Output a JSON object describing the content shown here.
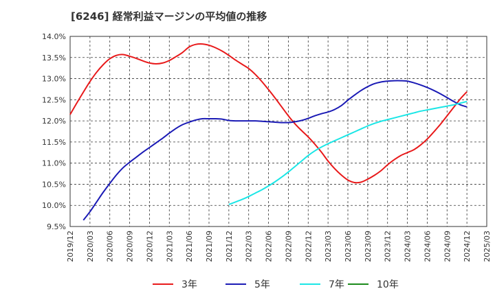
{
  "title": "[6246]  経常利益マージンの平均値の推移",
  "chart_data": {
    "type": "line",
    "title": "[6246]  経常利益マージンの平均値の推移",
    "xlabel": "",
    "ylabel": "",
    "ylim": [
      9.5,
      14.0
    ],
    "y_ticks": [
      "14.0%",
      "13.5%",
      "13.0%",
      "12.5%",
      "12.0%",
      "11.5%",
      "11.0%",
      "10.5%",
      "10.0%",
      "9.5%"
    ],
    "y_tick_values": [
      14.0,
      13.5,
      13.0,
      12.5,
      12.0,
      11.5,
      11.0,
      10.5,
      10.0,
      9.5
    ],
    "x_ticks": [
      "2019/12",
      "2020/03",
      "2020/06",
      "2020/09",
      "2020/12",
      "2021/03",
      "2021/06",
      "2021/09",
      "2021/12",
      "2022/03",
      "2022/06",
      "2022/09",
      "2022/12",
      "2023/03",
      "2023/06",
      "2023/09",
      "2023/12",
      "2024/03",
      "2024/06",
      "2024/09",
      "2024/12",
      "2025/03"
    ],
    "grid": true,
    "legend_position": "bottom",
    "series": [
      {
        "name": "3年",
        "color": "#e8191a",
        "points": [
          [
            "2019/12",
            12.15
          ],
          [
            "2020/01",
            12.42
          ],
          [
            "2020/02",
            12.68
          ],
          [
            "2020/03",
            12.93
          ],
          [
            "2020/04",
            13.15
          ],
          [
            "2020/05",
            13.33
          ],
          [
            "2020/06",
            13.47
          ],
          [
            "2020/07",
            13.55
          ],
          [
            "2020/08",
            13.57
          ],
          [
            "2020/09",
            13.53
          ],
          [
            "2020/10",
            13.48
          ],
          [
            "2020/11",
            13.42
          ],
          [
            "2020/12",
            13.37
          ],
          [
            "2021/01",
            13.35
          ],
          [
            "2021/02",
            13.37
          ],
          [
            "2021/03",
            13.43
          ],
          [
            "2021/04",
            13.52
          ],
          [
            "2021/05",
            13.62
          ],
          [
            "2021/06",
            13.75
          ],
          [
            "2021/07",
            13.81
          ],
          [
            "2021/08",
            13.82
          ],
          [
            "2021/09",
            13.79
          ],
          [
            "2021/10",
            13.73
          ],
          [
            "2021/11",
            13.65
          ],
          [
            "2021/12",
            13.55
          ],
          [
            "2022/01",
            13.44
          ],
          [
            "2022/02",
            13.34
          ],
          [
            "2022/03",
            13.24
          ],
          [
            "2022/04",
            13.1
          ],
          [
            "2022/05",
            12.93
          ],
          [
            "2022/06",
            12.74
          ],
          [
            "2022/07",
            12.54
          ],
          [
            "2022/08",
            12.33
          ],
          [
            "2022/09",
            12.12
          ],
          [
            "2022/10",
            11.93
          ],
          [
            "2022/11",
            11.77
          ],
          [
            "2022/12",
            11.62
          ],
          [
            "2023/01",
            11.45
          ],
          [
            "2023/02",
            11.26
          ],
          [
            "2023/03",
            11.05
          ],
          [
            "2023/04",
            10.87
          ],
          [
            "2023/05",
            10.72
          ],
          [
            "2023/06",
            10.6
          ],
          [
            "2023/07",
            10.54
          ],
          [
            "2023/08",
            10.55
          ],
          [
            "2023/09",
            10.62
          ],
          [
            "2023/10",
            10.71
          ],
          [
            "2023/11",
            10.82
          ],
          [
            "2023/12",
            10.96
          ],
          [
            "2024/01",
            11.08
          ],
          [
            "2024/02",
            11.18
          ],
          [
            "2024/03",
            11.25
          ],
          [
            "2024/04",
            11.32
          ],
          [
            "2024/05",
            11.43
          ],
          [
            "2024/06",
            11.57
          ],
          [
            "2024/07",
            11.74
          ],
          [
            "2024/08",
            11.92
          ],
          [
            "2024/09",
            12.12
          ],
          [
            "2024/10",
            12.32
          ],
          [
            "2024/11",
            12.52
          ],
          [
            "2024/12",
            12.69
          ]
        ]
      },
      {
        "name": "5年",
        "color": "#1a1ab5",
        "points": [
          [
            "2020/02",
            9.65
          ],
          [
            "2020/03",
            9.85
          ],
          [
            "2020/04",
            10.08
          ],
          [
            "2020/05",
            10.31
          ],
          [
            "2020/06",
            10.52
          ],
          [
            "2020/07",
            10.72
          ],
          [
            "2020/08",
            10.89
          ],
          [
            "2020/09",
            11.02
          ],
          [
            "2020/10",
            11.14
          ],
          [
            "2020/11",
            11.26
          ],
          [
            "2020/12",
            11.37
          ],
          [
            "2021/01",
            11.48
          ],
          [
            "2021/02",
            11.59
          ],
          [
            "2021/03",
            11.71
          ],
          [
            "2021/04",
            11.82
          ],
          [
            "2021/05",
            11.91
          ],
          [
            "2021/06",
            11.97
          ],
          [
            "2021/07",
            12.02
          ],
          [
            "2021/08",
            12.05
          ],
          [
            "2021/09",
            12.05
          ],
          [
            "2021/10",
            12.05
          ],
          [
            "2021/11",
            12.04
          ],
          [
            "2021/12",
            12.01
          ],
          [
            "2022/01",
            12.0
          ],
          [
            "2022/02",
            12.0
          ],
          [
            "2022/03",
            12.0
          ],
          [
            "2022/04",
            12.0
          ],
          [
            "2022/05",
            11.99
          ],
          [
            "2022/06",
            11.98
          ],
          [
            "2022/07",
            11.97
          ],
          [
            "2022/08",
            11.96
          ],
          [
            "2022/09",
            11.96
          ],
          [
            "2022/10",
            11.98
          ],
          [
            "2022/11",
            12.01
          ],
          [
            "2022/12",
            12.06
          ],
          [
            "2023/01",
            12.12
          ],
          [
            "2023/02",
            12.17
          ],
          [
            "2023/03",
            12.21
          ],
          [
            "2023/04",
            12.27
          ],
          [
            "2023/05",
            12.36
          ],
          [
            "2023/06",
            12.49
          ],
          [
            "2023/07",
            12.61
          ],
          [
            "2023/08",
            12.72
          ],
          [
            "2023/09",
            12.81
          ],
          [
            "2023/10",
            12.88
          ],
          [
            "2023/11",
            12.92
          ],
          [
            "2023/12",
            12.94
          ],
          [
            "2024/01",
            12.95
          ],
          [
            "2024/02",
            12.95
          ],
          [
            "2024/03",
            12.94
          ],
          [
            "2024/04",
            12.9
          ],
          [
            "2024/05",
            12.85
          ],
          [
            "2024/06",
            12.79
          ],
          [
            "2024/07",
            12.72
          ],
          [
            "2024/08",
            12.64
          ],
          [
            "2024/09",
            12.55
          ],
          [
            "2024/10",
            12.46
          ],
          [
            "2024/11",
            12.38
          ],
          [
            "2024/12",
            12.33
          ]
        ]
      },
      {
        "name": "7年",
        "color": "#1ae6e6",
        "points": [
          [
            "2021/12",
            10.02
          ],
          [
            "2022/01",
            10.08
          ],
          [
            "2022/02",
            10.14
          ],
          [
            "2022/03",
            10.21
          ],
          [
            "2022/04",
            10.29
          ],
          [
            "2022/05",
            10.37
          ],
          [
            "2022/06",
            10.46
          ],
          [
            "2022/07",
            10.56
          ],
          [
            "2022/08",
            10.67
          ],
          [
            "2022/09",
            10.79
          ],
          [
            "2022/10",
            10.92
          ],
          [
            "2022/11",
            11.05
          ],
          [
            "2022/12",
            11.18
          ],
          [
            "2023/01",
            11.29
          ],
          [
            "2023/02",
            11.38
          ],
          [
            "2023/03",
            11.46
          ],
          [
            "2023/04",
            11.53
          ],
          [
            "2023/05",
            11.6
          ],
          [
            "2023/06",
            11.67
          ],
          [
            "2023/07",
            11.74
          ],
          [
            "2023/08",
            11.81
          ],
          [
            "2023/09",
            11.88
          ],
          [
            "2023/10",
            11.94
          ],
          [
            "2023/11",
            11.99
          ],
          [
            "2023/12",
            12.03
          ],
          [
            "2024/01",
            12.07
          ],
          [
            "2024/02",
            12.11
          ],
          [
            "2024/03",
            12.15
          ],
          [
            "2024/04",
            12.19
          ],
          [
            "2024/05",
            12.23
          ],
          [
            "2024/06",
            12.26
          ],
          [
            "2024/07",
            12.29
          ],
          [
            "2024/08",
            12.32
          ],
          [
            "2024/09",
            12.35
          ],
          [
            "2024/10",
            12.38
          ],
          [
            "2024/11",
            12.42
          ],
          [
            "2024/12",
            12.46
          ]
        ]
      },
      {
        "name": "10年",
        "color": "#1a8a1a",
        "points": []
      }
    ]
  }
}
